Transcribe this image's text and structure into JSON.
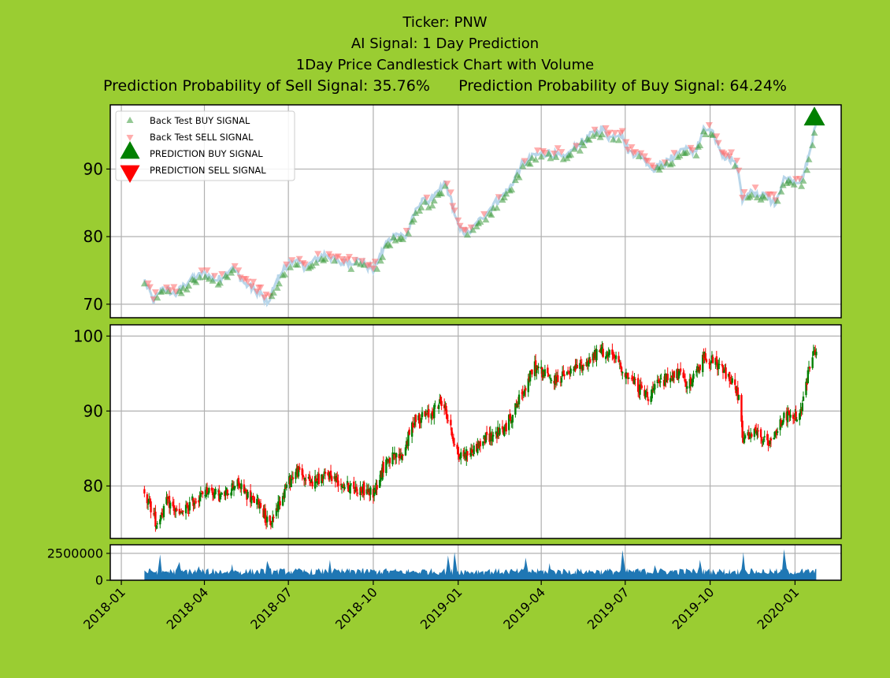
{
  "titles": {
    "ticker": "Ticker: PNW",
    "signal": "AI Signal: 1 Day Prediction",
    "chart": "1Day Price Candlestick Chart with Volume",
    "probability": "Prediction Probability of Sell Signal: 35.76%      Prediction Probability of Buy Signal: 64.24%"
  },
  "colors": {
    "background": "#9acd32",
    "plot_background": "#ffffff",
    "buy": "#008000",
    "sell": "#ff0000",
    "backtest_buy": "#3c9a3c",
    "backtest_sell": "#ff6a6a",
    "price_line": "#b8d6ea",
    "volume": "#1f77b4",
    "grid": "#b0b0b0"
  },
  "chart_data": [
    {
      "panel": "signals",
      "type": "line",
      "ylim": [
        68,
        99.5
      ],
      "yticks": [
        "70",
        "80",
        "90"
      ],
      "grid": true,
      "legend_placement": "top-left",
      "legend": [
        "Back Test BUY SIGNAL",
        "Back Test SELL SIGNAL",
        "PREDICTION BUY SIGNAL",
        "PREDICTION SELL SIGNAL"
      ],
      "series": [
        {
          "name": "Back Test BUY SIGNAL",
          "marker": "triangle-up"
        },
        {
          "name": "Back Test SELL SIGNAL",
          "marker": "triangle-down"
        },
        {
          "name": "PREDICTION BUY SIGNAL",
          "marker": "triangle-up",
          "points": [
            {
              "x": "2020-01-22",
              "y": 97.5
            }
          ]
        },
        {
          "name": "PREDICTION SELL SIGNAL",
          "marker": "triangle-down"
        }
      ],
      "price_path": [
        [
          "2018-01-26",
          73.5
        ],
        [
          "2018-02-05",
          70.5
        ],
        [
          "2018-02-15",
          72.5
        ],
        [
          "2018-03-01",
          71.5
        ],
        [
          "2018-03-15",
          73.5
        ],
        [
          "2018-04-01",
          74.5
        ],
        [
          "2018-04-15",
          73.5
        ],
        [
          "2018-05-01",
          75.5
        ],
        [
          "2018-05-15",
          73.0
        ],
        [
          "2018-06-01",
          71.5
        ],
        [
          "2018-06-08",
          70.0
        ],
        [
          "2018-06-22",
          74.5
        ],
        [
          "2018-07-05",
          76.5
        ],
        [
          "2018-07-20",
          75.5
        ],
        [
          "2018-08-10",
          77.5
        ],
        [
          "2018-08-25",
          76.0
        ],
        [
          "2018-09-15",
          76.5
        ],
        [
          "2018-10-01",
          75.0
        ],
        [
          "2018-10-15",
          79.0
        ],
        [
          "2018-10-25",
          80.5
        ],
        [
          "2018-11-05",
          80.0
        ],
        [
          "2018-11-20",
          85.0
        ],
        [
          "2018-12-05",
          85.5
        ],
        [
          "2018-12-18",
          88.0
        ],
        [
          "2018-12-25",
          85.0
        ],
        [
          "2019-01-02",
          81.0
        ],
        [
          "2019-01-12",
          80.5
        ],
        [
          "2019-01-25",
          82.5
        ],
        [
          "2019-02-10",
          85.0
        ],
        [
          "2019-02-25",
          87.0
        ],
        [
          "2019-03-10",
          90.5
        ],
        [
          "2019-03-25",
          92.0
        ],
        [
          "2019-04-10",
          92.5
        ],
        [
          "2019-04-25",
          91.5
        ],
        [
          "2019-05-10",
          93.5
        ],
        [
          "2019-05-25",
          95.0
        ],
        [
          "2019-06-05",
          96.0
        ],
        [
          "2019-06-15",
          94.5
        ],
        [
          "2019-06-25",
          95.5
        ],
        [
          "2019-07-05",
          92.5
        ],
        [
          "2019-07-20",
          92.0
        ],
        [
          "2019-07-30",
          90.0
        ],
        [
          "2019-08-15",
          91.0
        ],
        [
          "2019-09-01",
          93.0
        ],
        [
          "2019-09-15",
          92.5
        ],
        [
          "2019-09-25",
          96.0
        ],
        [
          "2019-10-05",
          95.0
        ],
        [
          "2019-10-15",
          92.0
        ],
        [
          "2019-10-25",
          91.5
        ],
        [
          "2019-11-01",
          89.5
        ],
        [
          "2019-11-05",
          85.5
        ],
        [
          "2019-11-15",
          86.5
        ],
        [
          "2019-11-30",
          86.0
        ],
        [
          "2019-12-10",
          85.0
        ],
        [
          "2019-12-20",
          88.5
        ],
        [
          "2020-01-01",
          88.5
        ],
        [
          "2020-01-08",
          88.0
        ],
        [
          "2020-01-14",
          91.0
        ],
        [
          "2020-01-22",
          95.5
        ],
        [
          "2020-01-24",
          97.5
        ]
      ]
    },
    {
      "panel": "candlestick",
      "type": "candlestick",
      "ylim": [
        73,
        101.5
      ],
      "yticks": [
        "80",
        "90",
        "100"
      ],
      "grid": true,
      "close_path": [
        [
          "2018-01-26",
          79.5
        ],
        [
          "2018-02-08",
          75.0
        ],
        [
          "2018-02-20",
          78.0
        ],
        [
          "2018-03-05",
          76.0
        ],
        [
          "2018-03-20",
          78.0
        ],
        [
          "2018-04-05",
          79.5
        ],
        [
          "2018-04-20",
          78.5
        ],
        [
          "2018-05-05",
          80.5
        ],
        [
          "2018-05-20",
          78.5
        ],
        [
          "2018-06-01",
          77.5
        ],
        [
          "2018-06-10",
          74.5
        ],
        [
          "2018-06-20",
          77.5
        ],
        [
          "2018-07-01",
          80.5
        ],
        [
          "2018-07-10",
          82.0
        ],
        [
          "2018-07-25",
          80.5
        ],
        [
          "2018-08-15",
          81.5
        ],
        [
          "2018-09-01",
          80.0
        ],
        [
          "2018-09-20",
          79.5
        ],
        [
          "2018-10-01",
          79.0
        ],
        [
          "2018-10-15",
          83.5
        ],
        [
          "2018-11-01",
          84.0
        ],
        [
          "2018-11-15",
          89.0
        ],
        [
          "2018-12-01",
          89.5
        ],
        [
          "2018-12-15",
          91.5
        ],
        [
          "2018-12-25",
          87.0
        ],
        [
          "2019-01-02",
          84.0
        ],
        [
          "2019-01-15",
          84.5
        ],
        [
          "2019-02-01",
          86.5
        ],
        [
          "2019-02-20",
          87.5
        ],
        [
          "2019-03-10",
          92.0
        ],
        [
          "2019-03-25",
          96.0
        ],
        [
          "2019-04-15",
          94.0
        ],
        [
          "2019-05-01",
          95.0
        ],
        [
          "2019-05-20",
          96.5
        ],
        [
          "2019-06-05",
          98.0
        ],
        [
          "2019-06-20",
          97.0
        ],
        [
          "2019-07-05",
          94.5
        ],
        [
          "2019-07-25",
          92.0
        ],
        [
          "2019-08-10",
          94.0
        ],
        [
          "2019-08-25",
          95.0
        ],
        [
          "2019-09-10",
          93.5
        ],
        [
          "2019-09-25",
          97.5
        ],
        [
          "2019-10-10",
          96.0
        ],
        [
          "2019-10-25",
          94.0
        ],
        [
          "2019-11-03",
          91.0
        ],
        [
          "2019-11-05",
          86.0
        ],
        [
          "2019-11-20",
          87.0
        ],
        [
          "2019-12-05",
          85.5
        ],
        [
          "2019-12-20",
          89.5
        ],
        [
          "2020-01-05",
          89.0
        ],
        [
          "2020-01-12",
          92.5
        ],
        [
          "2020-01-18",
          97.0
        ],
        [
          "2020-01-25",
          98.5
        ]
      ]
    },
    {
      "panel": "volume",
      "type": "area",
      "ylim": [
        0,
        3300000
      ],
      "yticks": [
        "0",
        "2500000"
      ],
      "grid": true,
      "typical_volume": 900000,
      "spikes": [
        [
          "2018-02-12",
          2400000
        ],
        [
          "2018-03-05",
          1700000
        ],
        [
          "2018-03-25",
          2000000
        ],
        [
          "2018-05-01",
          1500000
        ],
        [
          "2018-06-08",
          1800000
        ],
        [
          "2018-08-15",
          1900000
        ],
        [
          "2018-09-15",
          1600000
        ],
        [
          "2018-12-21",
          2300000
        ],
        [
          "2018-12-28",
          2600000
        ],
        [
          "2019-03-15",
          2100000
        ],
        [
          "2019-04-10",
          1600000
        ],
        [
          "2019-06-28",
          2800000
        ],
        [
          "2019-08-02",
          1400000
        ],
        [
          "2019-09-20",
          1900000
        ],
        [
          "2019-11-06",
          2600000
        ],
        [
          "2019-12-20",
          2900000
        ]
      ]
    }
  ],
  "x_axis": {
    "start": "2017-12-20",
    "end": "2020-02-20",
    "ticks": [
      {
        "date": "2018-01-01",
        "label": "2018-01"
      },
      {
        "date": "2018-04-01",
        "label": "2018-04"
      },
      {
        "date": "2018-07-01",
        "label": "2018-07"
      },
      {
        "date": "2018-10-01",
        "label": "2018-10"
      },
      {
        "date": "2019-01-01",
        "label": "2019-01"
      },
      {
        "date": "2019-04-01",
        "label": "2019-04"
      },
      {
        "date": "2019-07-01",
        "label": "2019-07"
      },
      {
        "date": "2019-10-01",
        "label": "2019-10"
      },
      {
        "date": "2020-01-01",
        "label": "2020-01"
      }
    ]
  }
}
